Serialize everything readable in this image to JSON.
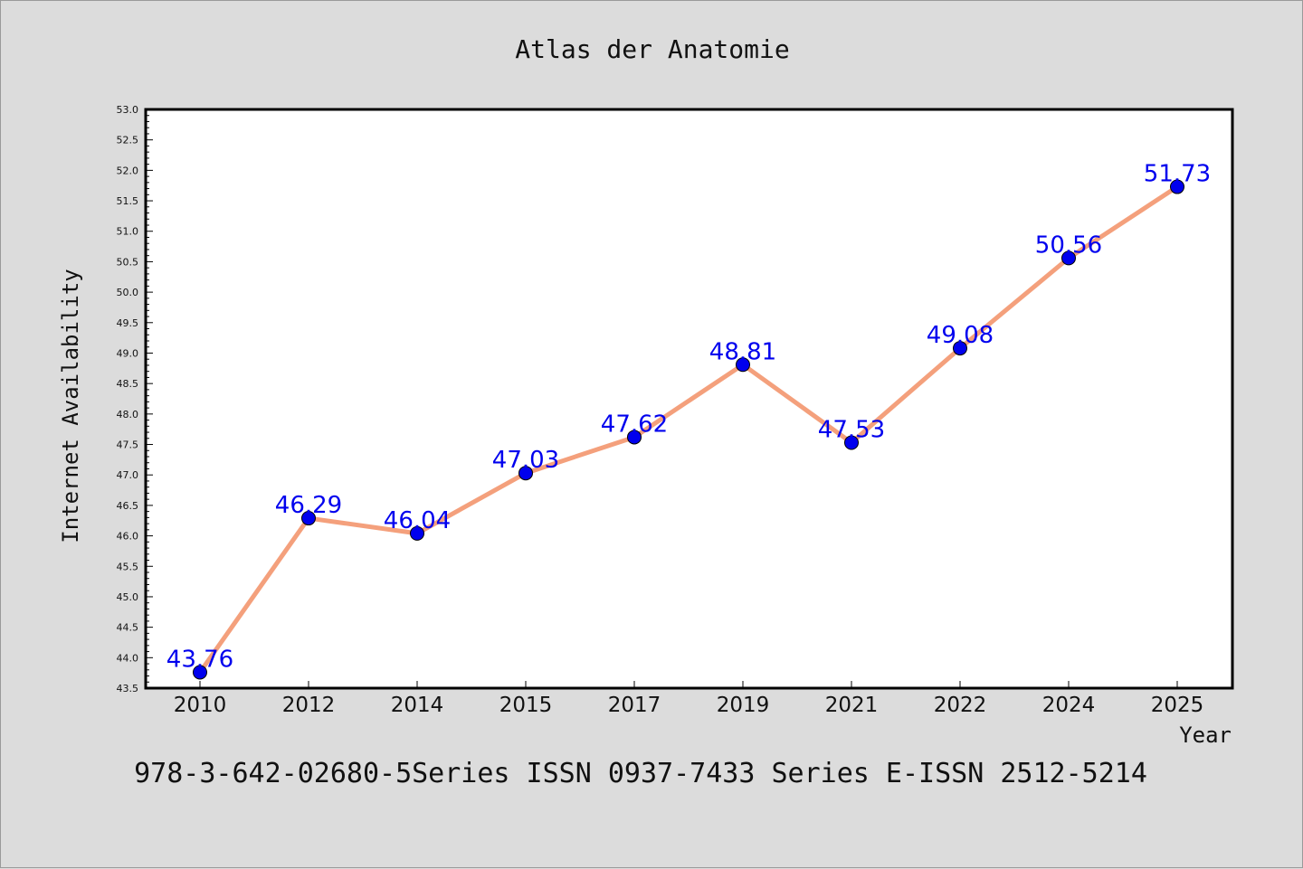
{
  "chart_data": {
    "type": "line",
    "title": "Atlas der Anatomie",
    "xlabel": "Year",
    "ylabel": "Internet Availability",
    "categories": [
      "2010",
      "2012",
      "2014",
      "2015",
      "2017",
      "2019",
      "2021",
      "2022",
      "2024",
      "2025"
    ],
    "series": [
      {
        "values": [
          43.76,
          46.29,
          46.04,
          47.03,
          47.62,
          48.81,
          47.53,
          49.08,
          50.56,
          51.73
        ],
        "value_labels": [
          "43.76",
          "46.29",
          "46.04",
          "47.03",
          "47.62",
          "48.81",
          "47.53",
          "49.08",
          "50.56",
          "51.73"
        ]
      }
    ],
    "ylim": [
      43.5,
      53.0
    ],
    "yticks": [
      "43.5",
      "44.0",
      "44.5",
      "45.0",
      "45.5",
      "46.0",
      "46.5",
      "47.0",
      "47.5",
      "48.0",
      "48.5",
      "49.0",
      "49.5",
      "50.0",
      "50.5",
      "51.0",
      "51.5",
      "52.0",
      "52.5",
      "53.0"
    ],
    "grid": false,
    "colors": {
      "line": "#f4a07c",
      "marker": "#0000ee",
      "label": "#0000ee",
      "background": "#dcdcdc",
      "plot_bg": "#ffffff"
    },
    "footer": "978-3-642-02680-5Series ISSN 0937-7433 Series E-ISSN 2512-5214"
  }
}
